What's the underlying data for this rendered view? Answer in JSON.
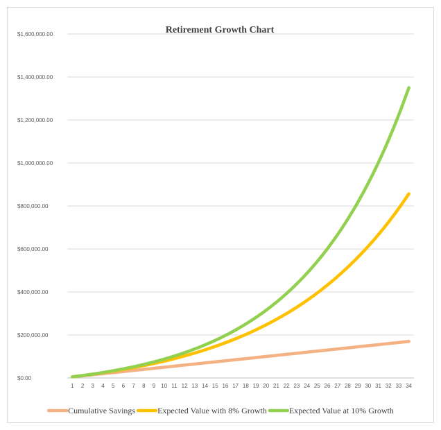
{
  "chart_data": {
    "type": "line",
    "title": "Retirement Growth Chart",
    "xlabel": "",
    "ylabel": "",
    "x": [
      1,
      2,
      3,
      4,
      5,
      6,
      7,
      8,
      9,
      10,
      11,
      12,
      13,
      14,
      15,
      16,
      17,
      18,
      19,
      20,
      21,
      22,
      23,
      24,
      25,
      26,
      27,
      28,
      29,
      30,
      31,
      32,
      33,
      34
    ],
    "y_ticks": [
      "$0.00",
      "$200,000.00",
      "$400,000.00",
      "$600,000.00",
      "$800,000.00",
      "$1,000,000.00",
      "$1,200,000.00",
      "$1,400,000.00",
      "$1,600,000.00"
    ],
    "ylim": [
      0,
      1600000
    ],
    "grid": true,
    "legend_position": "bottom",
    "series": [
      {
        "name": "Cumulative Savings",
        "color": "#f4b183",
        "values": [
          5000,
          10000,
          15000,
          20000,
          25000,
          30000,
          35000,
          40000,
          45000,
          50000,
          55000,
          60000,
          65000,
          70000,
          75000,
          80000,
          85000,
          90000,
          95000,
          100000,
          105000,
          110000,
          115000,
          120000,
          125000,
          130000,
          135000,
          140000,
          145000,
          150000,
          155000,
          160000,
          165000,
          170000
        ]
      },
      {
        "name": "Expected Value with 8% Growth",
        "color": "#ffc000",
        "values": [
          5400,
          11232,
          17531,
          24333,
          31680,
          39614,
          48183,
          57438,
          67433,
          78227,
          89886,
          102477,
          116075,
          130761,
          146622,
          163751,
          182251,
          202231,
          223810,
          247115,
          272284,
          299467,
          328824,
          360530,
          394772,
          431754,
          471694,
          514830,
          561416,
          611729,
          666068,
          724753,
          788134,
          856585
        ]
      },
      {
        "name": "Expected Value at 10% Growth",
        "color": "#92d050",
        "values": [
          5500,
          11550,
          18205,
          25526,
          33578,
          42436,
          52179,
          62897,
          74687,
          87656,
          101921,
          117614,
          134875,
          153862,
          174749,
          197724,
          222996,
          250796,
          281376,
          315013,
          352015,
          392716,
          437488,
          486737,
          540911,
          600502,
          666052,
          738157,
          817473,
          904720,
          1000692,
          1106261,
          1222387,
          1350126
        ]
      }
    ]
  }
}
